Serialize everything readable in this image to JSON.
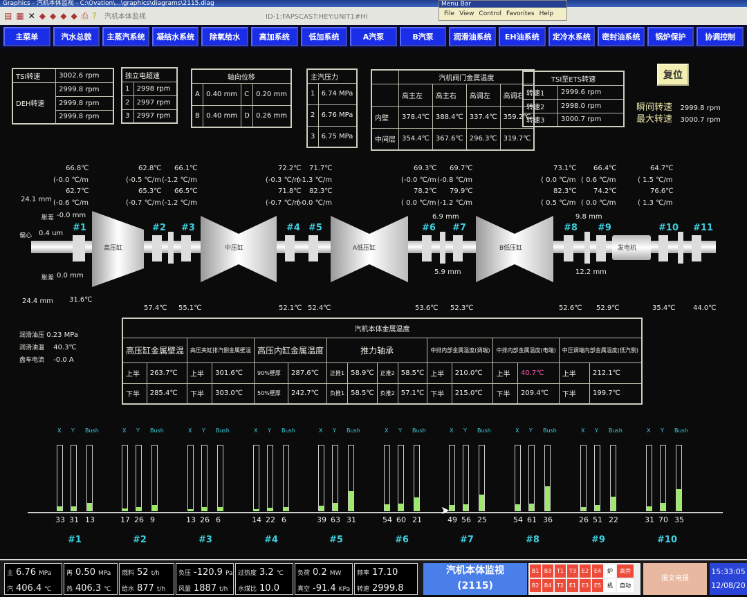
{
  "window": {
    "title": "Graphics - 汽机本体监视 - C:\\Ovation\\...\\graphics\\diagrams\\2115.diag",
    "toolbar_text": "汽机本体监视",
    "toolbar_path": "ID-1:FAPSCAST:HEY:UNIT1#HI"
  },
  "menubar": {
    "title": "Menu Bar",
    "items": [
      "File",
      "View",
      "Control",
      "Favorites",
      "Help"
    ]
  },
  "nav": [
    "主菜单",
    "汽水总貌",
    "主蒸汽系统",
    "凝结水系统",
    "除氧给水",
    "高加系统",
    "低加系统",
    "A汽泵",
    "B汽泵",
    "润滑油系统",
    "EH油系统",
    "定冷水系统",
    "密封油系统",
    "锅炉保护",
    "协调控制"
  ],
  "speed": {
    "tsi_label": "TSI转速",
    "tsi": "3002.6 rpm",
    "deh_label": "DEH转速",
    "deh": [
      "2999.8 rpm",
      "2999.8 rpm",
      "2999.8 rpm"
    ]
  },
  "overspeed": {
    "title": "独立电超速",
    "rows": [
      [
        "1",
        "2998 rpm"
      ],
      [
        "2",
        "2997 rpm"
      ],
      [
        "3",
        "2997 rpm"
      ]
    ]
  },
  "axial": {
    "title": "轴向位移",
    "rows": [
      [
        "A",
        "0.40 mm",
        "C",
        "0.20 mm"
      ],
      [
        "B",
        "0.40 mm",
        "D",
        "0.26 mm"
      ]
    ]
  },
  "main_steam": {
    "title": "主汽压力",
    "rows": [
      [
        "1",
        "6.74 MPa"
      ],
      [
        "2",
        "6.76 MPa"
      ],
      [
        "3",
        "6.75 MPa"
      ]
    ]
  },
  "valve_temp": {
    "title": "汽机阀门金属温度",
    "cols": [
      "高主左",
      "高主右",
      "高调左",
      "高调右"
    ],
    "rows": [
      [
        "内壁",
        "378.4℃",
        "388.4℃",
        "337.4℃",
        "359.2℃"
      ],
      [
        "中间层",
        "354.4℃",
        "367.6℃",
        "296.3℃",
        "319.7℃"
      ]
    ]
  },
  "tsi_ets": {
    "title": "TSI至ETS转速",
    "rows": [
      [
        "转速1",
        "2999.6 rpm"
      ],
      [
        "转速2",
        "2998.0 rpm"
      ],
      [
        "转速3",
        "3000.7 rpm"
      ]
    ]
  },
  "reset_label": "复位",
  "speed_extra": [
    [
      "瞬间转速",
      "2999.8 rpm"
    ],
    [
      "最大转速",
      "3000.7 rpm"
    ]
  ],
  "turbine": {
    "cylinders": [
      "高压缸",
      "中压缸",
      "A低压缸",
      "B低压缸",
      "发电机"
    ],
    "bearings": [
      "#1",
      "#2",
      "#3",
      "#4",
      "#5",
      "#6",
      "#7",
      "#8",
      "#9",
      "#10",
      "#11"
    ],
    "top_temps": [
      [
        "66.8℃",
        "(-0.0 ℃/m",
        "62.7℃",
        "(-0.6 ℃/m"
      ],
      [
        "62.8℃",
        "(-0.5 ℃/m",
        "65.3℃",
        "(-0.7 ℃/m"
      ],
      [
        "66.1℃",
        "(-1.2 ℃/m",
        "66.5℃",
        "(-1.2 ℃/m"
      ],
      [
        "72.2℃",
        "(-0.3 ℃/m",
        "71.8℃",
        "(-0.7 ℃/m"
      ],
      [
        "71.7℃",
        "(-1.3 ℃/m",
        "82.3℃",
        "(-0.0 ℃/m"
      ],
      [
        "69.3℃",
        "(-0.0 ℃/m",
        "78.2℃",
        "( 0.0 ℃/m"
      ],
      [
        "69.7℃",
        "(-0.8 ℃/m",
        "79.9℃",
        "(-1.2 ℃/m"
      ],
      [
        "73.1℃",
        "( 0.0 ℃/m",
        "82.3℃",
        "( 0.5 ℃/m"
      ],
      [
        "66.4℃",
        "( 0.6 ℃/m",
        "74.2℃",
        "( 0.0 ℃/m"
      ],
      [
        "64.7℃",
        "( 1.5 ℃/m",
        "76.6℃",
        "( 1.3 ℃/m"
      ]
    ],
    "bottom_temps": [
      "31.6℃",
      "57.4℃",
      "55.1℃",
      "52.1℃",
      "52.4℃",
      "53.6℃",
      "52.3℃",
      "52.6℃",
      "52.9℃",
      "35.4℃",
      "44.0℃"
    ],
    "left": {
      "v1": "24.1 mm",
      "diff1_label": "胀差",
      "diff1": "-0.0 mm",
      "ecc_label": "偏心",
      "ecc": "0.4 um",
      "diff2_label": "胀差",
      "diff2": "0.0 mm",
      "v2": "24.4 mm"
    },
    "lp_a": {
      "top": "6.9 mm",
      "bottom": "5.9 mm"
    },
    "lp_b": {
      "top": "9.8 mm",
      "bottom": "12.2 mm"
    }
  },
  "oil": [
    [
      "润滑油压",
      "0.23 MPa"
    ],
    [
      "润滑油温",
      "40.3℃"
    ],
    [
      "盘车电流",
      "-0.0 A"
    ]
  ],
  "metal": {
    "title": "汽机本体金属温度",
    "groups": [
      "高压缸金属壁温",
      "高压夹缸排汽侧金属壁温",
      "高压内缸金属温度",
      "推力轴承",
      "中排内部金属温度(调端)",
      "中排内部金属温度(电端)",
      "中压调端内部金属温度(低汽侧)"
    ],
    "rows": [
      [
        "上半",
        "263.7℃",
        "上半",
        "301.6℃",
        "90%壁厚",
        "287.6℃",
        "正推1",
        "58.9℃",
        "正推2",
        "58.5℃",
        "上半",
        "210.0℃",
        "上半",
        "40.7℃",
        "上半",
        "212.1℃"
      ],
      [
        "下半",
        "285.4℃",
        "下半",
        "303.0℃",
        "50%壁厚",
        "242.7℃",
        "负推1",
        "58.5℃",
        "负推2",
        "57.1℃",
        "下半",
        "215.0℃",
        "下半",
        "209.4℃",
        "下半",
        "199.7℃"
      ]
    ],
    "alarm_color": "#ff5ab0"
  },
  "vibration": {
    "axis": [
      "X",
      "Y",
      "Bush"
    ],
    "groups": [
      {
        "name": "#1",
        "values": [
          "33",
          "31",
          "13"
        ],
        "fill": [
          0.07,
          0.07,
          0.13
        ]
      },
      {
        "name": "#2",
        "values": [
          "17",
          "26",
          "9"
        ],
        "fill": [
          0.04,
          0.06,
          0.09
        ]
      },
      {
        "name": "#3",
        "values": [
          "13",
          "26",
          "6"
        ],
        "fill": [
          0.03,
          0.06,
          0.06
        ]
      },
      {
        "name": "#4",
        "values": [
          "14",
          "22",
          "6"
        ],
        "fill": [
          0.03,
          0.05,
          0.06
        ]
      },
      {
        "name": "#5",
        "values": [
          "39",
          "63",
          "31"
        ],
        "fill": [
          0.08,
          0.13,
          0.31
        ]
      },
      {
        "name": "#6",
        "values": [
          "54",
          "60",
          "21"
        ],
        "fill": [
          0.11,
          0.12,
          0.21
        ]
      },
      {
        "name": "#7",
        "values": [
          "49",
          "56",
          "25"
        ],
        "fill": [
          0.1,
          0.11,
          0.25
        ]
      },
      {
        "name": "#8",
        "values": [
          "54",
          "61",
          "36"
        ],
        "fill": [
          0.11,
          0.12,
          0.38
        ]
      },
      {
        "name": "#9",
        "values": [
          "26",
          "51",
          "22"
        ],
        "fill": [
          0.06,
          0.1,
          0.22
        ]
      },
      {
        "name": "#10",
        "values": [
          "31",
          "70",
          "35"
        ],
        "fill": [
          0.07,
          0.13,
          0.34
        ]
      }
    ],
    "fill_color": "#9ee86a"
  },
  "status": {
    "cells": [
      [
        [
          "主",
          "6.76",
          "MPa"
        ],
        [
          "汽",
          "406.4",
          "℃"
        ]
      ],
      [
        [
          "再",
          "0.50",
          "MPa"
        ],
        [
          "热",
          "406.3",
          "℃"
        ]
      ],
      [
        [
          "燃料",
          "52",
          "t/h"
        ],
        [
          "给水",
          "877",
          "t/h"
        ]
      ],
      [
        [
          "负压",
          "-120.9",
          "Pa"
        ],
        [
          "风量",
          "1887",
          "t/h"
        ]
      ],
      [
        [
          "过热度",
          "3.2",
          "℃"
        ],
        [
          "水煤比",
          "10.0",
          ""
        ]
      ],
      [
        [
          "负荷",
          "0.2",
          "MW"
        ],
        [
          "真空",
          "-91.4",
          "KPa"
        ]
      ],
      [
        [
          "频率",
          "17.10",
          ""
        ],
        [
          "转速",
          "2999.8",
          ""
        ]
      ]
    ],
    "page_title": "汽机本体监视",
    "page_code": "(2115)",
    "alarms_row1": [
      "B1",
      "B3",
      "T1",
      "T3",
      "E2",
      "E4",
      "炉",
      "高旁"
    ],
    "alarms_row2": [
      "B2",
      "B4",
      "T2",
      "E1",
      "E3",
      "E5",
      "机",
      "自动"
    ],
    "notice": "报文电报",
    "time": "15:33:05",
    "date": "12/08/20"
  }
}
